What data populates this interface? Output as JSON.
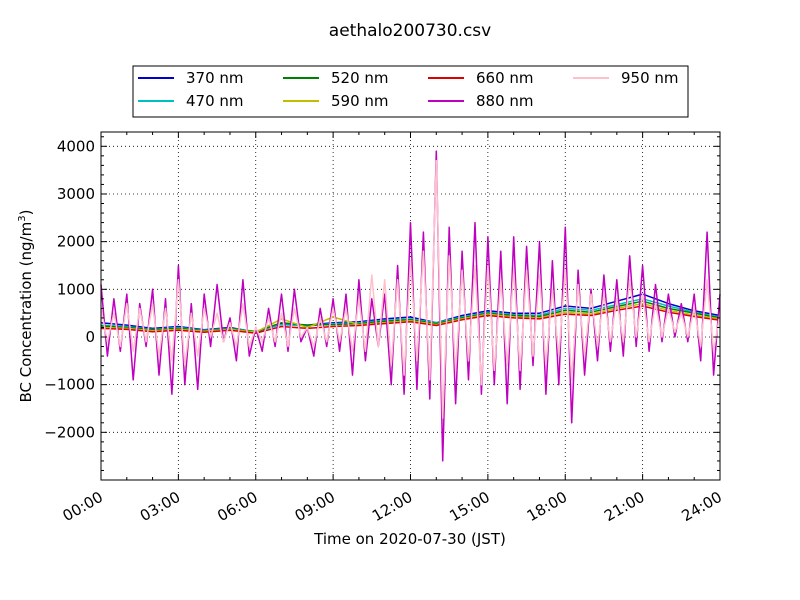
{
  "chart_data": {
    "type": "line",
    "title": "aethalo200730.csv",
    "xlabel": "Time on 2020-07-30 (JST)",
    "ylabel_main": "BC Concentration (ng/m",
    "ylabel_sup": "3",
    "ylabel_tail": ")",
    "x_unit": "hours",
    "xlim": [
      0,
      24
    ],
    "ylim": [
      -3000,
      4300
    ],
    "x_ticks": [
      {
        "value": 0,
        "label": "00:00"
      },
      {
        "value": 3,
        "label": "03:00"
      },
      {
        "value": 6,
        "label": "06:00"
      },
      {
        "value": 9,
        "label": "09:00"
      },
      {
        "value": 12,
        "label": "12:00"
      },
      {
        "value": 15,
        "label": "15:00"
      },
      {
        "value": 18,
        "label": "18:00"
      },
      {
        "value": 21,
        "label": "21:00"
      },
      {
        "value": 24,
        "label": "24:00"
      }
    ],
    "y_ticks": [
      {
        "value": -2000,
        "label": "−2000"
      },
      {
        "value": -1000,
        "label": "−1000"
      },
      {
        "value": 0,
        "label": "0"
      },
      {
        "value": 1000,
        "label": "1000"
      },
      {
        "value": 2000,
        "label": "2000"
      },
      {
        "value": 3000,
        "label": "3000"
      },
      {
        "value": 4000,
        "label": "4000"
      }
    ],
    "grid": true,
    "legend_position": "top-center",
    "series": [
      {
        "name": "370 nm",
        "color": "#0000cc",
        "x": [
          0,
          1,
          2,
          3,
          4,
          5,
          6,
          7,
          8,
          9,
          10,
          11,
          12,
          13,
          14,
          15,
          16,
          17,
          18,
          19,
          20,
          21,
          22,
          23,
          24
        ],
        "y": [
          300,
          250,
          180,
          220,
          150,
          200,
          100,
          280,
          250,
          300,
          320,
          380,
          420,
          300,
          450,
          550,
          500,
          500,
          650,
          600,
          750,
          900,
          700,
          550,
          450
        ]
      },
      {
        "name": "470 nm",
        "color": "#00bfbf",
        "x": [
          0,
          1,
          2,
          3,
          4,
          5,
          6,
          7,
          8,
          9,
          10,
          11,
          12,
          13,
          14,
          15,
          16,
          17,
          18,
          19,
          20,
          21,
          22,
          23,
          24
        ],
        "y": [
          250,
          220,
          160,
          200,
          140,
          180,
          120,
          260,
          230,
          280,
          300,
          350,
          380,
          300,
          420,
          520,
          470,
          460,
          600,
          560,
          680,
          800,
          650,
          520,
          420
        ]
      },
      {
        "name": "520 nm",
        "color": "#008000",
        "x": [
          0,
          1,
          2,
          3,
          4,
          5,
          6,
          7,
          8,
          9,
          10,
          11,
          12,
          13,
          14,
          15,
          16,
          17,
          18,
          19,
          20,
          21,
          22,
          23,
          24
        ],
        "y": [
          230,
          200,
          150,
          180,
          130,
          170,
          110,
          300,
          250,
          260,
          280,
          330,
          360,
          280,
          400,
          500,
          450,
          430,
          560,
          520,
          640,
          750,
          600,
          500,
          400
        ]
      },
      {
        "name": "590 nm",
        "color": "#bfbf00",
        "x": [
          0,
          1,
          2,
          3,
          4,
          5,
          6,
          7,
          8,
          9,
          10,
          11,
          12,
          13,
          14,
          15,
          16,
          17,
          18,
          19,
          20,
          21,
          22,
          23,
          24
        ],
        "y": [
          200,
          180,
          130,
          160,
          120,
          160,
          100,
          380,
          200,
          420,
          260,
          300,
          340,
          260,
          380,
          480,
          420,
          400,
          520,
          480,
          600,
          700,
          560,
          460,
          380
        ]
      },
      {
        "name": "660 nm",
        "color": "#dd0000",
        "x": [
          0,
          1,
          2,
          3,
          4,
          5,
          6,
          7,
          8,
          9,
          10,
          11,
          12,
          13,
          14,
          15,
          16,
          17,
          18,
          19,
          20,
          21,
          22,
          23,
          24
        ],
        "y": [
          180,
          160,
          110,
          140,
          100,
          140,
          80,
          220,
          180,
          220,
          240,
          280,
          320,
          240,
          360,
          450,
          400,
          380,
          480,
          450,
          560,
          650,
          520,
          430,
          350
        ]
      },
      {
        "name": "880 nm",
        "color": "#bf00bf",
        "x": [
          0,
          0.25,
          0.5,
          0.75,
          1,
          1.25,
          1.5,
          1.75,
          2,
          2.25,
          2.5,
          2.75,
          3,
          3.25,
          3.5,
          3.75,
          4,
          4.25,
          4.5,
          4.75,
          5,
          5.25,
          5.5,
          5.75,
          6,
          6.25,
          6.5,
          6.75,
          7,
          7.25,
          7.5,
          7.75,
          8,
          8.25,
          8.5,
          8.75,
          9,
          9.25,
          9.5,
          9.75,
          10,
          10.25,
          10.5,
          10.75,
          11,
          11.25,
          11.5,
          11.75,
          12,
          12.25,
          12.5,
          12.75,
          13,
          13.25,
          13.5,
          13.75,
          14,
          14.25,
          14.5,
          14.75,
          15,
          15.25,
          15.5,
          15.75,
          16,
          16.25,
          16.5,
          16.75,
          17,
          17.25,
          17.5,
          17.75,
          18,
          18.25,
          18.5,
          18.75,
          19,
          19.25,
          19.5,
          19.75,
          20,
          20.25,
          20.5,
          20.75,
          21,
          21.25,
          21.5,
          21.75,
          22,
          22.25,
          22.5,
          22.75,
          23,
          23.25,
          23.5,
          23.75,
          24
        ],
        "y": [
          1100,
          -400,
          800,
          -300,
          900,
          -900,
          700,
          -200,
          1000,
          -800,
          800,
          -1200,
          1500,
          -1000,
          700,
          -1100,
          900,
          -200,
          1100,
          -100,
          400,
          -500,
          1200,
          -400,
          200,
          -300,
          600,
          -200,
          900,
          -300,
          1000,
          -100,
          200,
          -400,
          600,
          -200,
          800,
          -300,
          900,
          -800,
          1200,
          -500,
          800,
          -200,
          900,
          -1000,
          1500,
          -1200,
          2400,
          -1100,
          2200,
          -1300,
          3900,
          -2600,
          2300,
          -1400,
          1800,
          -900,
          2400,
          -1200,
          2100,
          -1000,
          1800,
          -1400,
          2100,
          -1100,
          1900,
          -600,
          2000,
          -1200,
          1600,
          -1000,
          2300,
          -1800,
          1400,
          -800,
          1000,
          -500,
          1300,
          -300,
          1200,
          -400,
          1700,
          -200,
          1500,
          -300,
          1100,
          -100,
          900,
          0,
          700,
          -100,
          900,
          -500,
          2200,
          -800,
          900
        ]
      },
      {
        "name": "950 nm",
        "color": "#ffc0cb",
        "x": [
          0,
          0.25,
          0.5,
          0.75,
          1,
          1.25,
          1.5,
          1.75,
          2,
          2.25,
          2.5,
          2.75,
          3,
          3.25,
          3.5,
          3.75,
          4,
          4.25,
          4.5,
          4.75,
          5,
          5.25,
          5.5,
          5.75,
          6,
          6.25,
          6.5,
          6.75,
          7,
          7.25,
          7.5,
          7.75,
          8,
          8.25,
          8.5,
          8.75,
          9,
          9.25,
          9.5,
          9.75,
          10,
          10.25,
          10.5,
          10.75,
          11,
          11.25,
          11.5,
          11.75,
          12,
          12.25,
          12.5,
          12.75,
          13,
          13.25,
          13.5,
          13.75,
          14,
          14.25,
          14.5,
          14.75,
          15,
          15.25,
          15.5,
          15.75,
          16,
          16.25,
          16.5,
          16.75,
          17,
          17.25,
          17.5,
          17.75,
          18,
          18.25,
          18.5,
          18.75,
          19,
          19.25,
          19.5,
          19.75,
          20,
          20.25,
          20.5,
          20.75,
          21,
          21.25,
          21.5,
          21.75,
          22,
          22.25,
          22.5,
          22.75,
          23,
          23.25,
          23.5,
          23.75,
          24
        ],
        "y": [
          600,
          -100,
          500,
          -200,
          700,
          -300,
          600,
          -100,
          700,
          -400,
          600,
          -500,
          1200,
          -600,
          500,
          -400,
          600,
          0,
          500,
          -100,
          300,
          -200,
          700,
          -200,
          200,
          -100,
          400,
          -100,
          500,
          -200,
          600,
          0,
          200,
          -200,
          400,
          -100,
          600,
          -100,
          600,
          -300,
          800,
          -300,
          1300,
          -200,
          1200,
          -600,
          1200,
          -800,
          1600,
          -500,
          1800,
          -900,
          3700,
          -1700,
          1700,
          -700,
          1400,
          -500,
          1500,
          -1000,
          1500,
          -700,
          1200,
          -600,
          1400,
          -700,
          1400,
          -400,
          1300,
          -600,
          1000,
          -400,
          1400,
          -900,
          1100,
          -400,
          900,
          -200,
          900,
          -100,
          800,
          -100,
          1200,
          0,
          900,
          -100,
          700,
          0,
          600,
          100,
          500,
          0,
          600,
          -200,
          1200,
          -300,
          500
        ]
      }
    ]
  }
}
